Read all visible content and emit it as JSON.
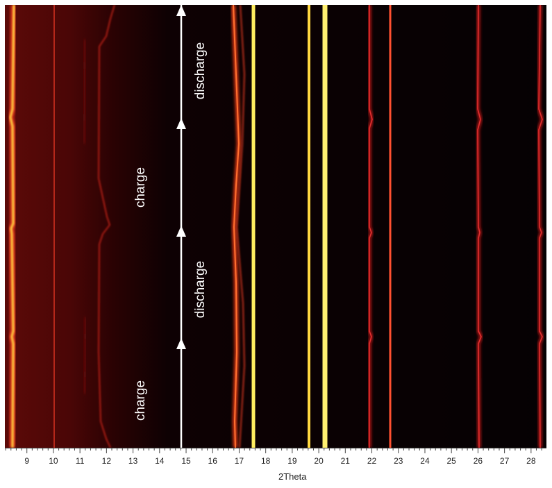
{
  "chart_data": {
    "type": "heatmap",
    "title": "",
    "xlabel": "2Theta",
    "ylabel": "",
    "xlim": [
      8.17,
      28.58
    ],
    "x_ticks": [
      9,
      10,
      11,
      12,
      13,
      14,
      15,
      16,
      17,
      18,
      19,
      20,
      21,
      22,
      23,
      24,
      25,
      26,
      27,
      28
    ],
    "minor_ticks_per_unit": 5,
    "grid": false,
    "legend": null,
    "colormap": [
      "#000000",
      "#5a0a0a",
      "#c8201a",
      "#f07020",
      "#ffe040",
      "#ffffa0"
    ],
    "description": "In-situ XRD contour plot; vertical reflection lines over time (bottom to top) during two charge/discharge cycles",
    "peaks": [
      {
        "two_theta": 8.5,
        "intensity": "strong",
        "shifts": true
      },
      {
        "two_theta": 10.0,
        "intensity": "weak"
      },
      {
        "two_theta": 11.1,
        "intensity": "very weak"
      },
      {
        "two_theta": 12.0,
        "intensity": "weak",
        "shifts": true
      },
      {
        "two_theta": 16.8,
        "intensity": "medium",
        "shifts": true
      },
      {
        "two_theta": 17.5,
        "intensity": "strong"
      },
      {
        "two_theta": 19.6,
        "intensity": "strong"
      },
      {
        "two_theta": 20.2,
        "intensity": "very strong"
      },
      {
        "two_theta": 21.9,
        "intensity": "weak",
        "shifts": true
      },
      {
        "two_theta": 22.7,
        "intensity": "medium"
      },
      {
        "two_theta": 26.0,
        "intensity": "weak",
        "shifts": true
      },
      {
        "two_theta": 28.4,
        "intensity": "weak",
        "shifts": true
      }
    ],
    "annotations": [
      {
        "text": "charge",
        "segment": 1,
        "x": 14.3,
        "orientation": "vertical"
      },
      {
        "text": "discharge",
        "segment": 2,
        "x": 15.4,
        "orientation": "vertical"
      },
      {
        "text": "charge",
        "segment": 3,
        "x": 14.3,
        "orientation": "vertical"
      },
      {
        "text": "discharge",
        "segment": 4,
        "x": 15.4,
        "orientation": "vertical"
      }
    ],
    "time_arrow": {
      "x": 14.85,
      "direction": "up",
      "segment_boundaries_fraction": [
        0,
        0.248,
        0.503,
        0.745,
        1.0
      ]
    }
  },
  "labels": {
    "xlabel": "2Theta",
    "ticks": [
      "9",
      "10",
      "11",
      "12",
      "13",
      "14",
      "15",
      "16",
      "17",
      "18",
      "19",
      "20",
      "21",
      "22",
      "23",
      "24",
      "25",
      "26",
      "27",
      "28"
    ],
    "annot1": "charge",
    "annot2": "discharge",
    "annot3": "charge",
    "annot4": "discharge"
  }
}
